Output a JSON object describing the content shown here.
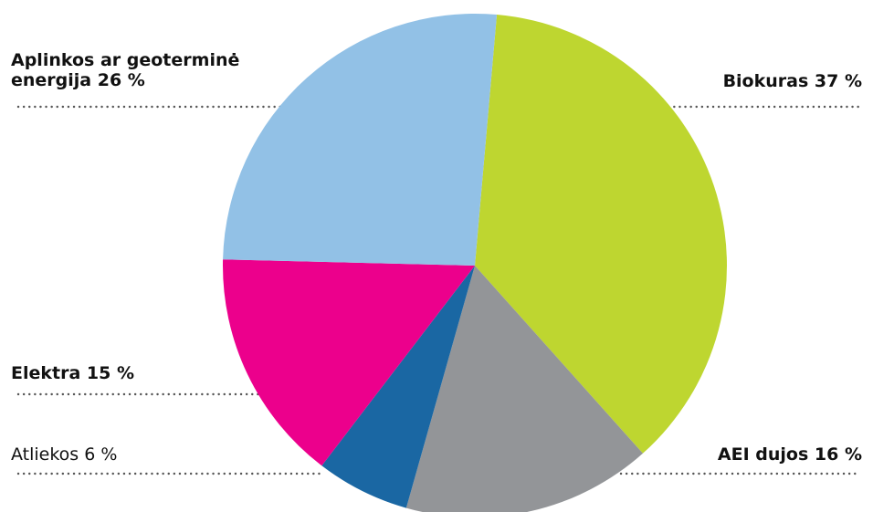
{
  "chart_data": {
    "type": "pie",
    "categories": [
      "Biokuras",
      "AEI dujos",
      "Atliekos",
      "Elektra",
      "Aplinkos ar geoterminė energija"
    ],
    "values": [
      37,
      16,
      6,
      15,
      26
    ],
    "value_labels": [
      "37 %",
      "16 %",
      "6 %",
      "15 %",
      "26 %"
    ],
    "colors": [
      "#bed630",
      "#939598",
      "#1a67a3",
      "#ec008c",
      "#92c1e6"
    ]
  }
}
